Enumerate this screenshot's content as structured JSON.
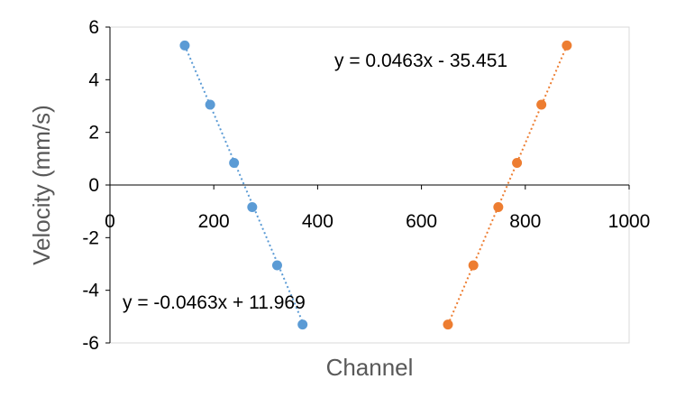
{
  "chart_data": {
    "type": "scatter",
    "title": "",
    "xlabel": "Channel",
    "ylabel": "Velocity (mm/s)",
    "xlim": [
      0,
      1000
    ],
    "ylim": [
      -6,
      6
    ],
    "x_ticks": [
      "0",
      "200",
      "400",
      "600",
      "800",
      "1000"
    ],
    "y_ticks": [
      "6",
      "4",
      "2",
      "0",
      "-2",
      "-4",
      "-6"
    ],
    "x_tick_values": [
      0,
      200,
      400,
      600,
      800,
      1000
    ],
    "y_tick_values": [
      6,
      4,
      2,
      0,
      -2,
      -4,
      -6
    ],
    "grid": false,
    "series": [
      {
        "color": "#5B9BD5",
        "points": [
          {
            "x": 144,
            "y": 5.3
          },
          {
            "x": 193,
            "y": 3.05
          },
          {
            "x": 239,
            "y": 0.84
          },
          {
            "x": 274,
            "y": -0.84
          },
          {
            "x": 322,
            "y": -3.05
          },
          {
            "x": 371,
            "y": -5.3
          }
        ],
        "trendline": {
          "slope": -0.0463,
          "intercept": 11.969,
          "x_range": [
            144,
            371
          ]
        },
        "equation_label": "y = -0.0463x + 11.969"
      },
      {
        "color": "#ED7D31",
        "points": [
          {
            "x": 651,
            "y": -5.3
          },
          {
            "x": 700,
            "y": -3.05
          },
          {
            "x": 748,
            "y": -0.84
          },
          {
            "x": 784,
            "y": 0.84
          },
          {
            "x": 831,
            "y": 3.05
          },
          {
            "x": 880,
            "y": 5.3
          }
        ],
        "trendline": {
          "slope": 0.0463,
          "intercept": -35.451,
          "x_range": [
            651,
            880
          ]
        },
        "equation_label": "y = 0.0463x - 35.451"
      }
    ]
  }
}
